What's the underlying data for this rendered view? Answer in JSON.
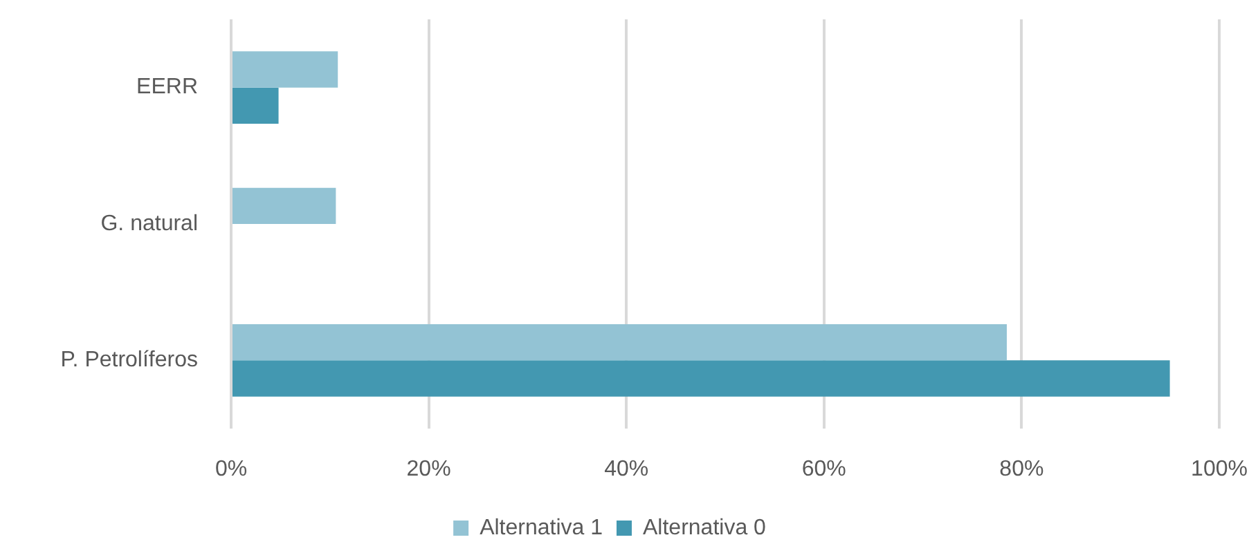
{
  "chart_data": {
    "type": "bar",
    "orientation": "horizontal",
    "categories": [
      "EERR",
      "G. natural",
      "P. Petrolíferos"
    ],
    "series": [
      {
        "name": "Alternativa 1",
        "color": "#93c3d4",
        "values": [
          10.8,
          10.6,
          78.5
        ]
      },
      {
        "name": "Alternativa 0",
        "color": "#4398b1",
        "values": [
          4.8,
          null,
          95.0
        ]
      }
    ],
    "xlim": [
      0,
      100
    ],
    "xticks": [
      {
        "value": 0,
        "label": "0%"
      },
      {
        "value": 20,
        "label": "20%"
      },
      {
        "value": 40,
        "label": "40%"
      },
      {
        "value": 60,
        "label": "60%"
      },
      {
        "value": 80,
        "label": "80%"
      },
      {
        "value": 100,
        "label": "100%"
      }
    ],
    "grid": "x",
    "legend": "bottom"
  }
}
